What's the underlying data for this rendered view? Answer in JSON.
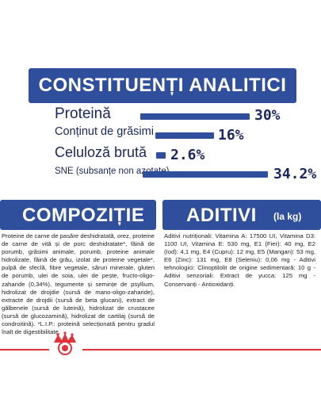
{
  "analitici": {
    "title": "CONSTITUENȚI ANALITICI",
    "rows": [
      {
        "label": "Proteină",
        "value": "30%"
      },
      {
        "label": "Conținut de grăsimi",
        "value": "16%"
      },
      {
        "label": "Celuloză brută",
        "value": "2.6%"
      },
      {
        "label": "SNE (subsanțe non azotate)",
        "value": "34.2%"
      }
    ]
  },
  "compozitie": {
    "title": "COMPOZIȚIE",
    "text": "Proteine de carne de pasăre deshidratată, orez, proteine de carne de vită și de porc deshidratate*, făină de porumb, grăsimi animale, porumb, proteine animale hidrolizate, făină de grâu, izolat de proteine vegetale*, pulpă de sfeclă, fibre vegetale, săruri minerale, gluten de porumb, ulei de soia, ulei de pește, fructo-oligo-zaharide (0,34%), tegumente și semințe de psyllium, hidrolizat de drojdie (sursă de mano-oligo-zaharide), extracte de drojdii (sursă de beta glucani), extract de gălbenele (sursă de luteină), hidrolizat de crustacee (sursă de glucozamină), hidrolizat de cartilaj (sursă de condroitină). *L.I.P.: proteină selecționată pentru gradul înalt de digestibilitate."
  },
  "aditivi": {
    "title": "ADITIVI",
    "unit": "(la kg)",
    "text": "Aditivi nutriționali: Vitamina A: 17500 UI, Vitamina D3: 1100 UI, Vitamina E: 530 mg, E1 (Fier): 40 mg, E2 (Iod): 4,1 mg, E4 (Cupru): 12 mg, E5 (Mangan): 53 mg, E6 (Zinc): 131 mg, E8 (Seleniu): 0,06 mg - Aditivi tehnologici: Clinoptilolit de origine sedimentară: 10 g - Aditivi senzoriali: Extract de yucca: 125 mg - Conservanți - Antioxidanți."
  },
  "colors": {
    "navy": "#2f4f9c",
    "text": "#1c2860",
    "red": "#e0343c"
  },
  "logo": {
    "icon": "royal-canin-crown-logo"
  }
}
